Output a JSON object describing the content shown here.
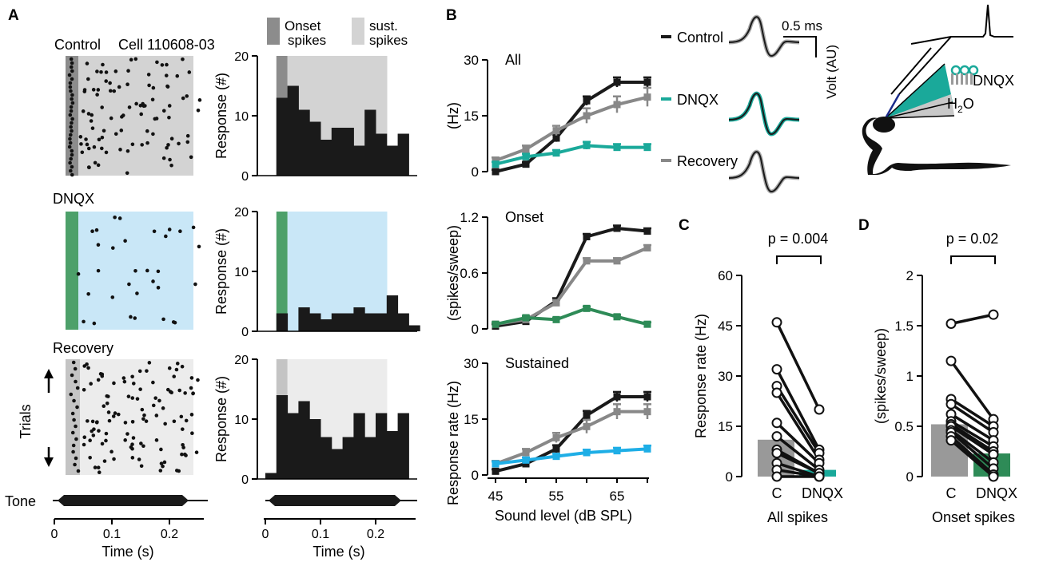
{
  "panel_labels": {
    "a": "A",
    "b": "B",
    "c": "C",
    "d": "D"
  },
  "colors": {
    "black": "#1a1a1a",
    "gray": "#888888",
    "teal": "#1aa99a",
    "green": "#2e8b57",
    "green_bar": "#4da06a",
    "blue": "#1eaee6",
    "light_gray": "#d3d3d3",
    "dark_gray": "#8c8c8c",
    "light_blue": "#c9e7f7",
    "very_light_gray": "#ececec"
  },
  "panel_a": {
    "raster": [
      {
        "title": "Control",
        "cell_label": "Cell 110608-03",
        "onset_color": "#8c8c8c",
        "sustained_color": "#d3d3d3"
      },
      {
        "title": "DNQX",
        "onset_color": "#4da06a",
        "sustained_color": "#c9e7f7"
      },
      {
        "title": "Recovery",
        "onset_color": "#c4c4c4",
        "sustained_color": "#ececec"
      }
    ],
    "trials_label": "Trials",
    "tone_label": "Tone",
    "time_xlabel": "Time (s)",
    "time_ticks": [
      "0",
      "0.1",
      "0.2"
    ],
    "histogram_ylabel": "Response (#)",
    "legend": {
      "onset": "Onset spikes",
      "sustained": "sust. spikes"
    }
  },
  "panel_b": {
    "xlabel": "Sound level (dB SPL)",
    "ylabel_rate": "Response rate (Hz)",
    "ylabel_hz": "(Hz)",
    "ylabel_onset": "(spikes/sweep)",
    "legend": [
      "Control",
      "DNQX",
      "Recovery"
    ],
    "scale_bar": "0.5 ms",
    "volt_label": "Volt (AU)",
    "drug_label": "DNQX",
    "water_label": "H2O"
  },
  "panel_c": {
    "pvalue": "p = 0.004",
    "ylabel": "Response rate (Hz)",
    "xticks": [
      "C",
      "DNQX"
    ],
    "xlabel": "All spikes"
  },
  "panel_d": {
    "pvalue": "p = 0.02",
    "ylabel": "(spikes/sweep)",
    "xticks": [
      "C",
      "DNQX"
    ],
    "xlabel": "Onset spikes"
  },
  "chart_data": [
    {
      "id": "A-hist-control",
      "type": "bar",
      "title": "Control",
      "xlabel": "Time (s)",
      "ylabel": "Response (#)",
      "bin_width": 0.02,
      "bin_start": 0.02,
      "xlim": [
        0,
        0.25
      ],
      "ylim": [
        0,
        20
      ],
      "yticks": [
        0,
        10,
        20
      ],
      "values": [
        13,
        15,
        11,
        9,
        6,
        8,
        8,
        5,
        11,
        7,
        5,
        7
      ],
      "onset_bins": 1
    },
    {
      "id": "A-hist-dnqx",
      "type": "bar",
      "title": "DNQX",
      "xlabel": "Time (s)",
      "ylabel": "Response (#)",
      "bin_width": 0.02,
      "bin_start": 0.02,
      "xlim": [
        0,
        0.25
      ],
      "ylim": [
        0,
        20
      ],
      "yticks": [
        0,
        10,
        20
      ],
      "values": [
        3,
        0,
        4,
        3,
        2,
        3,
        3,
        4,
        3,
        3,
        6,
        3,
        1
      ],
      "onset_bins": 1
    },
    {
      "id": "A-hist-recovery",
      "type": "bar",
      "title": "Recovery",
      "xlabel": "Time (s)",
      "ylabel": "Response (#)",
      "bin_width": 0.02,
      "bin_start": 0.0,
      "xlim": [
        0,
        0.25
      ],
      "ylim": [
        0,
        20
      ],
      "yticks": [
        0,
        10,
        20
      ],
      "values": [
        1,
        14,
        11,
        13,
        10,
        7,
        5,
        7,
        11,
        7,
        11,
        8,
        11
      ],
      "onset_bins": 2
    },
    {
      "id": "B-all",
      "type": "line",
      "title": "All",
      "xlabel": "Sound level (dB SPL)",
      "ylabel": "(Hz)",
      "x": [
        45,
        50,
        55,
        60,
        65,
        70
      ],
      "ylim": [
        0,
        30
      ],
      "yticks": [
        0,
        15,
        30
      ],
      "series": [
        {
          "name": "Control",
          "color": "#1a1a1a",
          "values": [
            0,
            2,
            9,
            19,
            24,
            24
          ],
          "err": [
            0.5,
            0.5,
            1,
            1.2,
            1.3,
            1.3
          ]
        },
        {
          "name": "Recovery",
          "color": "#888888",
          "values": [
            3,
            6,
            11,
            15,
            18,
            20
          ],
          "err": [
            0.8,
            1,
            1.3,
            2,
            2.2,
            2.5
          ]
        },
        {
          "name": "DNQX",
          "color": "#1aa99a",
          "values": [
            2,
            4,
            5,
            7,
            6.5,
            6.5
          ],
          "err": [
            0.6,
            0.8,
            0.8,
            1,
            0.9,
            0.9
          ]
        }
      ]
    },
    {
      "id": "B-onset",
      "type": "line",
      "title": "Onset",
      "xlabel": "Sound level (dB SPL)",
      "ylabel": "(spikes/sweep)",
      "x": [
        45,
        50,
        55,
        60,
        65,
        70
      ],
      "ylim": [
        0,
        1.2
      ],
      "yticks": [
        0,
        0.6,
        1.2
      ],
      "series": [
        {
          "name": "Control",
          "color": "#1a1a1a",
          "values": [
            0.03,
            0.08,
            0.3,
            0.99,
            1.08,
            1.05
          ],
          "err": [
            0.02,
            0.02,
            0.03,
            0.03,
            0.03,
            0.03
          ]
        },
        {
          "name": "Recovery",
          "color": "#888888",
          "values": [
            0.05,
            0.1,
            0.28,
            0.73,
            0.73,
            0.87
          ],
          "err": [
            0.02,
            0.02,
            0.03,
            0.03,
            0.03,
            0.03
          ]
        },
        {
          "name": "DNQX",
          "color": "#2e8b57",
          "values": [
            0.05,
            0.12,
            0.1,
            0.22,
            0.13,
            0.05
          ],
          "err": [
            0.02,
            0.02,
            0.02,
            0.02,
            0.02,
            0.02
          ]
        }
      ]
    },
    {
      "id": "B-sustained",
      "type": "line",
      "title": "Sustained",
      "xlabel": "Sound level (dB SPL)",
      "ylabel": "Response rate (Hz)",
      "x": [
        45,
        50,
        55,
        60,
        65,
        70
      ],
      "xticks": [
        45,
        55,
        65
      ],
      "ylim": [
        0,
        30
      ],
      "yticks": [
        0,
        15,
        30
      ],
      "series": [
        {
          "name": "Control",
          "color": "#1a1a1a",
          "values": [
            1,
            3,
            7,
            16,
            21,
            21
          ],
          "err": [
            0.5,
            0.6,
            1,
            1.2,
            1.3,
            1.3
          ]
        },
        {
          "name": "Recovery",
          "color": "#888888",
          "values": [
            3,
            6,
            10,
            13,
            17,
            17
          ],
          "err": [
            0.8,
            1,
            1.3,
            1.8,
            2,
            2
          ]
        },
        {
          "name": "DNQX",
          "color": "#1eaee6",
          "values": [
            3,
            4,
            5,
            6,
            6.5,
            7
          ],
          "err": [
            0.6,
            0.7,
            0.7,
            0.8,
            0.8,
            0.9
          ]
        }
      ]
    },
    {
      "id": "C",
      "type": "bar",
      "title": "All spikes",
      "ylabel": "Response rate (Hz)",
      "categories": [
        "C",
        "DNQX"
      ],
      "values": [
        11,
        2
      ],
      "ylim": [
        0,
        60
      ],
      "yticks": [
        0,
        15,
        30,
        45,
        60
      ],
      "pvalue": "p = 0.004",
      "pairs": [
        [
          46,
          20
        ],
        [
          32,
          8
        ],
        [
          27,
          7
        ],
        [
          25,
          5
        ],
        [
          16,
          4
        ],
        [
          12,
          2
        ],
        [
          8,
          1
        ],
        [
          7,
          1
        ],
        [
          4,
          0
        ],
        [
          2,
          0
        ],
        [
          0,
          0
        ]
      ]
    },
    {
      "id": "D",
      "type": "bar",
      "title": "Onset spikes",
      "ylabel": "(spikes/sweep)",
      "categories": [
        "C",
        "DNQX"
      ],
      "values": [
        0.52,
        0.23
      ],
      "ylim": [
        0,
        2
      ],
      "yticks": [
        0,
        0.5,
        1,
        1.5,
        2
      ],
      "pvalue": "p = 0.02",
      "pairs": [
        [
          1.52,
          1.61
        ],
        [
          1.15,
          0.57
        ],
        [
          0.77,
          0.5
        ],
        [
          0.72,
          0.44
        ],
        [
          0.62,
          0.36
        ],
        [
          0.55,
          0.3
        ],
        [
          0.52,
          0.25
        ],
        [
          0.5,
          0.22
        ],
        [
          0.46,
          0.14
        ],
        [
          0.44,
          0.08
        ],
        [
          0.4,
          0.02
        ],
        [
          0.36,
          0.0
        ]
      ]
    }
  ]
}
